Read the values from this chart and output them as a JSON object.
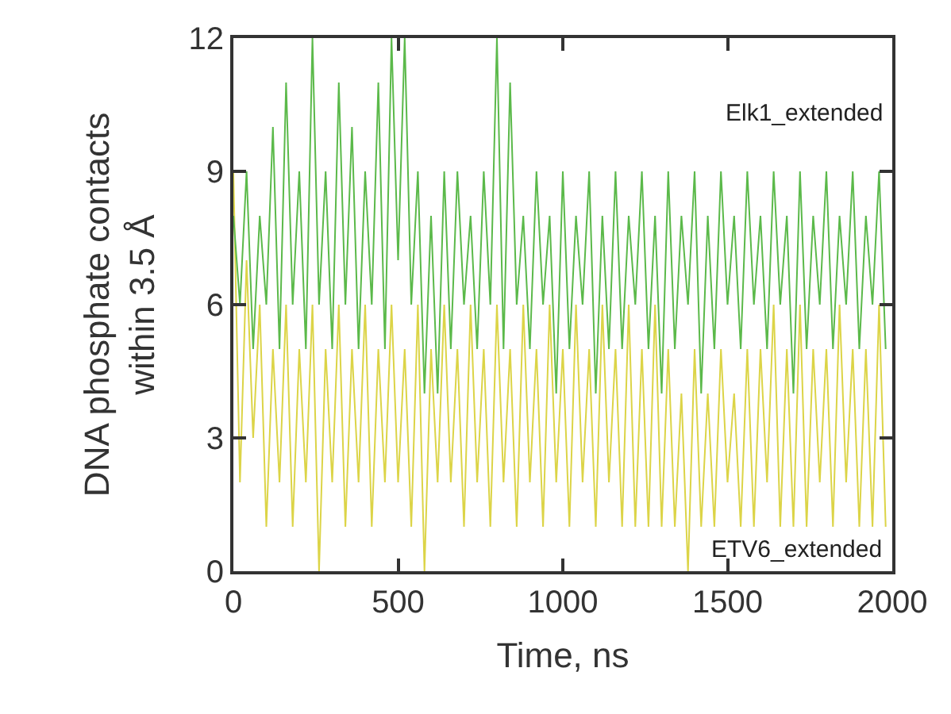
{
  "chart_data": {
    "type": "line",
    "xlabel": "Time, ns",
    "ylabel": "DNA phosphate contacts\nwithin 3.5 Å",
    "xlim": [
      0,
      2000
    ],
    "xticks": [
      0,
      500,
      1000,
      1500,
      2000
    ],
    "ylim": [
      0,
      12
    ],
    "yticks": [
      0,
      3,
      6,
      9,
      12
    ],
    "legend": false,
    "marker": "none",
    "line_style": "solid",
    "x": [
      0,
      20,
      40,
      60,
      80,
      100,
      120,
      140,
      160,
      180,
      200,
      220,
      240,
      260,
      280,
      300,
      320,
      340,
      360,
      380,
      400,
      420,
      440,
      460,
      480,
      500,
      520,
      540,
      560,
      580,
      600,
      620,
      640,
      660,
      680,
      700,
      720,
      740,
      760,
      780,
      800,
      820,
      840,
      860,
      880,
      900,
      920,
      940,
      960,
      980,
      1000,
      1020,
      1040,
      1060,
      1080,
      1100,
      1120,
      1140,
      1160,
      1180,
      1200,
      1220,
      1240,
      1260,
      1280,
      1300,
      1320,
      1340,
      1360,
      1380,
      1400,
      1420,
      1440,
      1460,
      1480,
      1500,
      1520,
      1540,
      1560,
      1580,
      1600,
      1620,
      1640,
      1660,
      1680,
      1700,
      1720,
      1740,
      1760,
      1780,
      1800,
      1820,
      1840,
      1860,
      1880,
      1900,
      1920,
      1940,
      1960,
      1980
    ],
    "series": [
      {
        "name": "ETV6_extended",
        "color": "#dcd447",
        "values": [
          9,
          2,
          7,
          3,
          6,
          1,
          5,
          2,
          6,
          1,
          5,
          2,
          6,
          0,
          5,
          2,
          6,
          1,
          5,
          2,
          6,
          1,
          5,
          2,
          6,
          2,
          5,
          1,
          6,
          0,
          5,
          2,
          6,
          2,
          5,
          1,
          6,
          2,
          5,
          1,
          6,
          2,
          5,
          1,
          6,
          2,
          5,
          1,
          6,
          2,
          5,
          1,
          6,
          2,
          5,
          1,
          6,
          2,
          5,
          1,
          6,
          1,
          5,
          1,
          6,
          1,
          5,
          1,
          4,
          0,
          5,
          1,
          4,
          1,
          5,
          2,
          4,
          1,
          5,
          1,
          5,
          2,
          6,
          1,
          5,
          1,
          6,
          1,
          5,
          2,
          5,
          1,
          6,
          2,
          5,
          1,
          5,
          1,
          6,
          1
        ]
      },
      {
        "name": "Elk1_extended",
        "color": "#5bb94a",
        "values": [
          8,
          6,
          9,
          5,
          8,
          6,
          10,
          5,
          11,
          6,
          9,
          5,
          12,
          6,
          9,
          5,
          11,
          6,
          10,
          5,
          9,
          6,
          11,
          5,
          12,
          7,
          12,
          6,
          9,
          4,
          8,
          4,
          9,
          5,
          9,
          6,
          8,
          5,
          9,
          6,
          12,
          5,
          11,
          6,
          8,
          5,
          9,
          6,
          8,
          4,
          9,
          5,
          8,
          6,
          9,
          4,
          8,
          5,
          9,
          5,
          8,
          6,
          9,
          5,
          8,
          4,
          9,
          5,
          8,
          6,
          9,
          4,
          8,
          5,
          9,
          6,
          8,
          5,
          9,
          6,
          8,
          5,
          9,
          6,
          8,
          4,
          9,
          5,
          8,
          6,
          9,
          5,
          8,
          6,
          9,
          5,
          8,
          6,
          9,
          5
        ]
      }
    ]
  }
}
